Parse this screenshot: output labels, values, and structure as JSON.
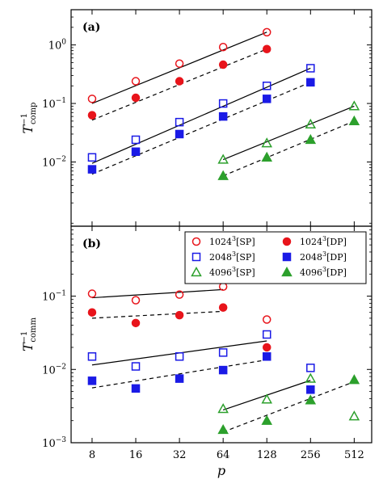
{
  "chart_data": [
    {
      "type": "scatter",
      "panel_label": "(a)",
      "ylabel": "T_comp^-1",
      "ylabel_main": "T",
      "ylabel_sup": "−1",
      "ylabel_sub": "comp",
      "xlabel": "",
      "x_scale": "log2",
      "y_scale": "log10",
      "ylim": [
        0.0008,
        4
      ],
      "x_ticks": [
        8,
        16,
        32,
        64,
        128,
        256,
        512
      ],
      "y_ticks": [
        {
          "value": 0.01,
          "base": "10",
          "exp": "−2"
        },
        {
          "value": 0.1,
          "base": "10",
          "exp": "−1"
        },
        {
          "value": 1,
          "base": "10",
          "exp": "0"
        }
      ],
      "series": [
        {
          "name": "1024^3[SP]",
          "color": "#e8141b",
          "marker": "circle-open",
          "x": [
            8,
            16,
            32,
            64,
            128
          ],
          "y": [
            0.12,
            0.24,
            0.48,
            0.92,
            1.65
          ],
          "fit": {
            "x": [
              8,
              128
            ],
            "y": [
              0.1,
              1.65
            ],
            "dash": "solid"
          }
        },
        {
          "name": "1024^3[DP]",
          "color": "#e8141b",
          "marker": "circle-filled",
          "x": [
            8,
            16,
            32,
            64,
            128
          ],
          "y": [
            0.063,
            0.125,
            0.24,
            0.46,
            0.85
          ],
          "fit": {
            "x": [
              8,
              128
            ],
            "y": [
              0.052,
              0.85
            ],
            "dash": "dashed"
          }
        },
        {
          "name": "2048^3[SP]",
          "color": "#1a1ae6",
          "marker": "square-open",
          "x": [
            8,
            16,
            32,
            64,
            128,
            256
          ],
          "y": [
            0.012,
            0.024,
            0.048,
            0.1,
            0.2,
            0.4
          ],
          "fit": {
            "x": [
              8,
              256
            ],
            "y": [
              0.0095,
              0.4
            ],
            "dash": "solid"
          }
        },
        {
          "name": "2048^3[DP]",
          "color": "#1a1ae6",
          "marker": "square-filled",
          "x": [
            8,
            16,
            32,
            64,
            128,
            256
          ],
          "y": [
            0.0075,
            0.015,
            0.03,
            0.06,
            0.12,
            0.23
          ],
          "fit": {
            "x": [
              8,
              256
            ],
            "y": [
              0.0062,
              0.23
            ],
            "dash": "dashed"
          }
        },
        {
          "name": "4096^3[SP]",
          "color": "#2ca02c",
          "marker": "triangle-open",
          "x": [
            64,
            128,
            256,
            512
          ],
          "y": [
            0.011,
            0.021,
            0.044,
            0.09
          ],
          "fit": {
            "x": [
              64,
              512
            ],
            "y": [
              0.011,
              0.09
            ],
            "dash": "solid"
          }
        },
        {
          "name": "4096^3[DP]",
          "color": "#2ca02c",
          "marker": "triangle-filled",
          "x": [
            64,
            128,
            256,
            512
          ],
          "y": [
            0.0058,
            0.012,
            0.024,
            0.05
          ],
          "fit": {
            "x": [
              64,
              512
            ],
            "y": [
              0.0058,
              0.05
            ],
            "dash": "dashed"
          }
        }
      ]
    },
    {
      "type": "scatter",
      "panel_label": "(b)",
      "ylabel": "T_comm^-1",
      "ylabel_main": "T",
      "ylabel_sup": "−1",
      "ylabel_sub": "comm",
      "xlabel": "p",
      "x_scale": "log2",
      "y_scale": "log10",
      "ylim": [
        0.001,
        0.9
      ],
      "x_ticks": [
        8,
        16,
        32,
        64,
        128,
        256,
        512
      ],
      "y_ticks": [
        {
          "value": 0.001,
          "base": "10",
          "exp": "−3"
        },
        {
          "value": 0.01,
          "base": "10",
          "exp": "−2"
        },
        {
          "value": 0.1,
          "base": "10",
          "exp": "−1"
        }
      ],
      "legend": {
        "position": "top-right",
        "columns": 2
      },
      "series": [
        {
          "name": "1024^3[SP]",
          "color": "#e8141b",
          "marker": "circle-open",
          "x": [
            8,
            16,
            32,
            64,
            128
          ],
          "y": [
            0.108,
            0.088,
            0.105,
            0.135,
            0.048
          ],
          "fit": {
            "x": [
              8,
              64
            ],
            "y": [
              0.095,
              0.123
            ],
            "dash": "solid"
          }
        },
        {
          "name": "1024^3[DP]",
          "color": "#e8141b",
          "marker": "circle-filled",
          "x": [
            8,
            16,
            32,
            64,
            128
          ],
          "y": [
            0.06,
            0.043,
            0.055,
            0.07,
            0.02
          ],
          "fit": {
            "x": [
              8,
              64
            ],
            "y": [
              0.05,
              0.062
            ],
            "dash": "dashed"
          }
        },
        {
          "name": "2048^3[SP]",
          "color": "#1a1ae6",
          "marker": "square-open",
          "x": [
            8,
            16,
            32,
            64,
            128,
            256
          ],
          "y": [
            0.015,
            0.011,
            0.015,
            0.017,
            0.03,
            0.0105
          ],
          "fit": {
            "x": [
              8,
              128
            ],
            "y": [
              0.0115,
              0.0245
            ],
            "dash": "solid"
          }
        },
        {
          "name": "2048^3[DP]",
          "color": "#1a1ae6",
          "marker": "square-filled",
          "x": [
            8,
            16,
            32,
            64,
            128,
            256
          ],
          "y": [
            0.007,
            0.0055,
            0.0075,
            0.0098,
            0.015,
            0.0053
          ],
          "fit": {
            "x": [
              8,
              128
            ],
            "y": [
              0.0056,
              0.0135
            ],
            "dash": "dashed"
          }
        },
        {
          "name": "4096^3[SP]",
          "color": "#2ca02c",
          "marker": "triangle-open",
          "x": [
            64,
            128,
            256,
            512
          ],
          "y": [
            0.0029,
            0.0039,
            0.0075,
            0.0023
          ],
          "fit": {
            "x": [
              64,
              256
            ],
            "y": [
              0.0028,
              0.0071
            ],
            "dash": "solid"
          }
        },
        {
          "name": "4096^3[DP]",
          "color": "#2ca02c",
          "marker": "triangle-filled",
          "x": [
            64,
            128,
            256,
            512
          ],
          "y": [
            0.0015,
            0.002,
            0.0038,
            0.0072
          ],
          "fit": {
            "x": [
              64,
              512
            ],
            "y": [
              0.0014,
              0.0068
            ],
            "dash": "dashed"
          }
        }
      ]
    }
  ],
  "legend_entries": [
    {
      "base": "1024",
      "exp": "3",
      "tag": "[SP]",
      "color": "#e8141b",
      "marker": "circle-open"
    },
    {
      "base": "1024",
      "exp": "3",
      "tag": "[DP]",
      "color": "#e8141b",
      "marker": "circle-filled"
    },
    {
      "base": "2048",
      "exp": "3",
      "tag": "[SP]",
      "color": "#1a1ae6",
      "marker": "square-open"
    },
    {
      "base": "2048",
      "exp": "3",
      "tag": "[DP]",
      "color": "#1a1ae6",
      "marker": "square-filled"
    },
    {
      "base": "4096",
      "exp": "3",
      "tag": "[SP]",
      "color": "#2ca02c",
      "marker": "triangle-open"
    },
    {
      "base": "4096",
      "exp": "3",
      "tag": "[DP]",
      "color": "#2ca02c",
      "marker": "triangle-filled"
    }
  ]
}
